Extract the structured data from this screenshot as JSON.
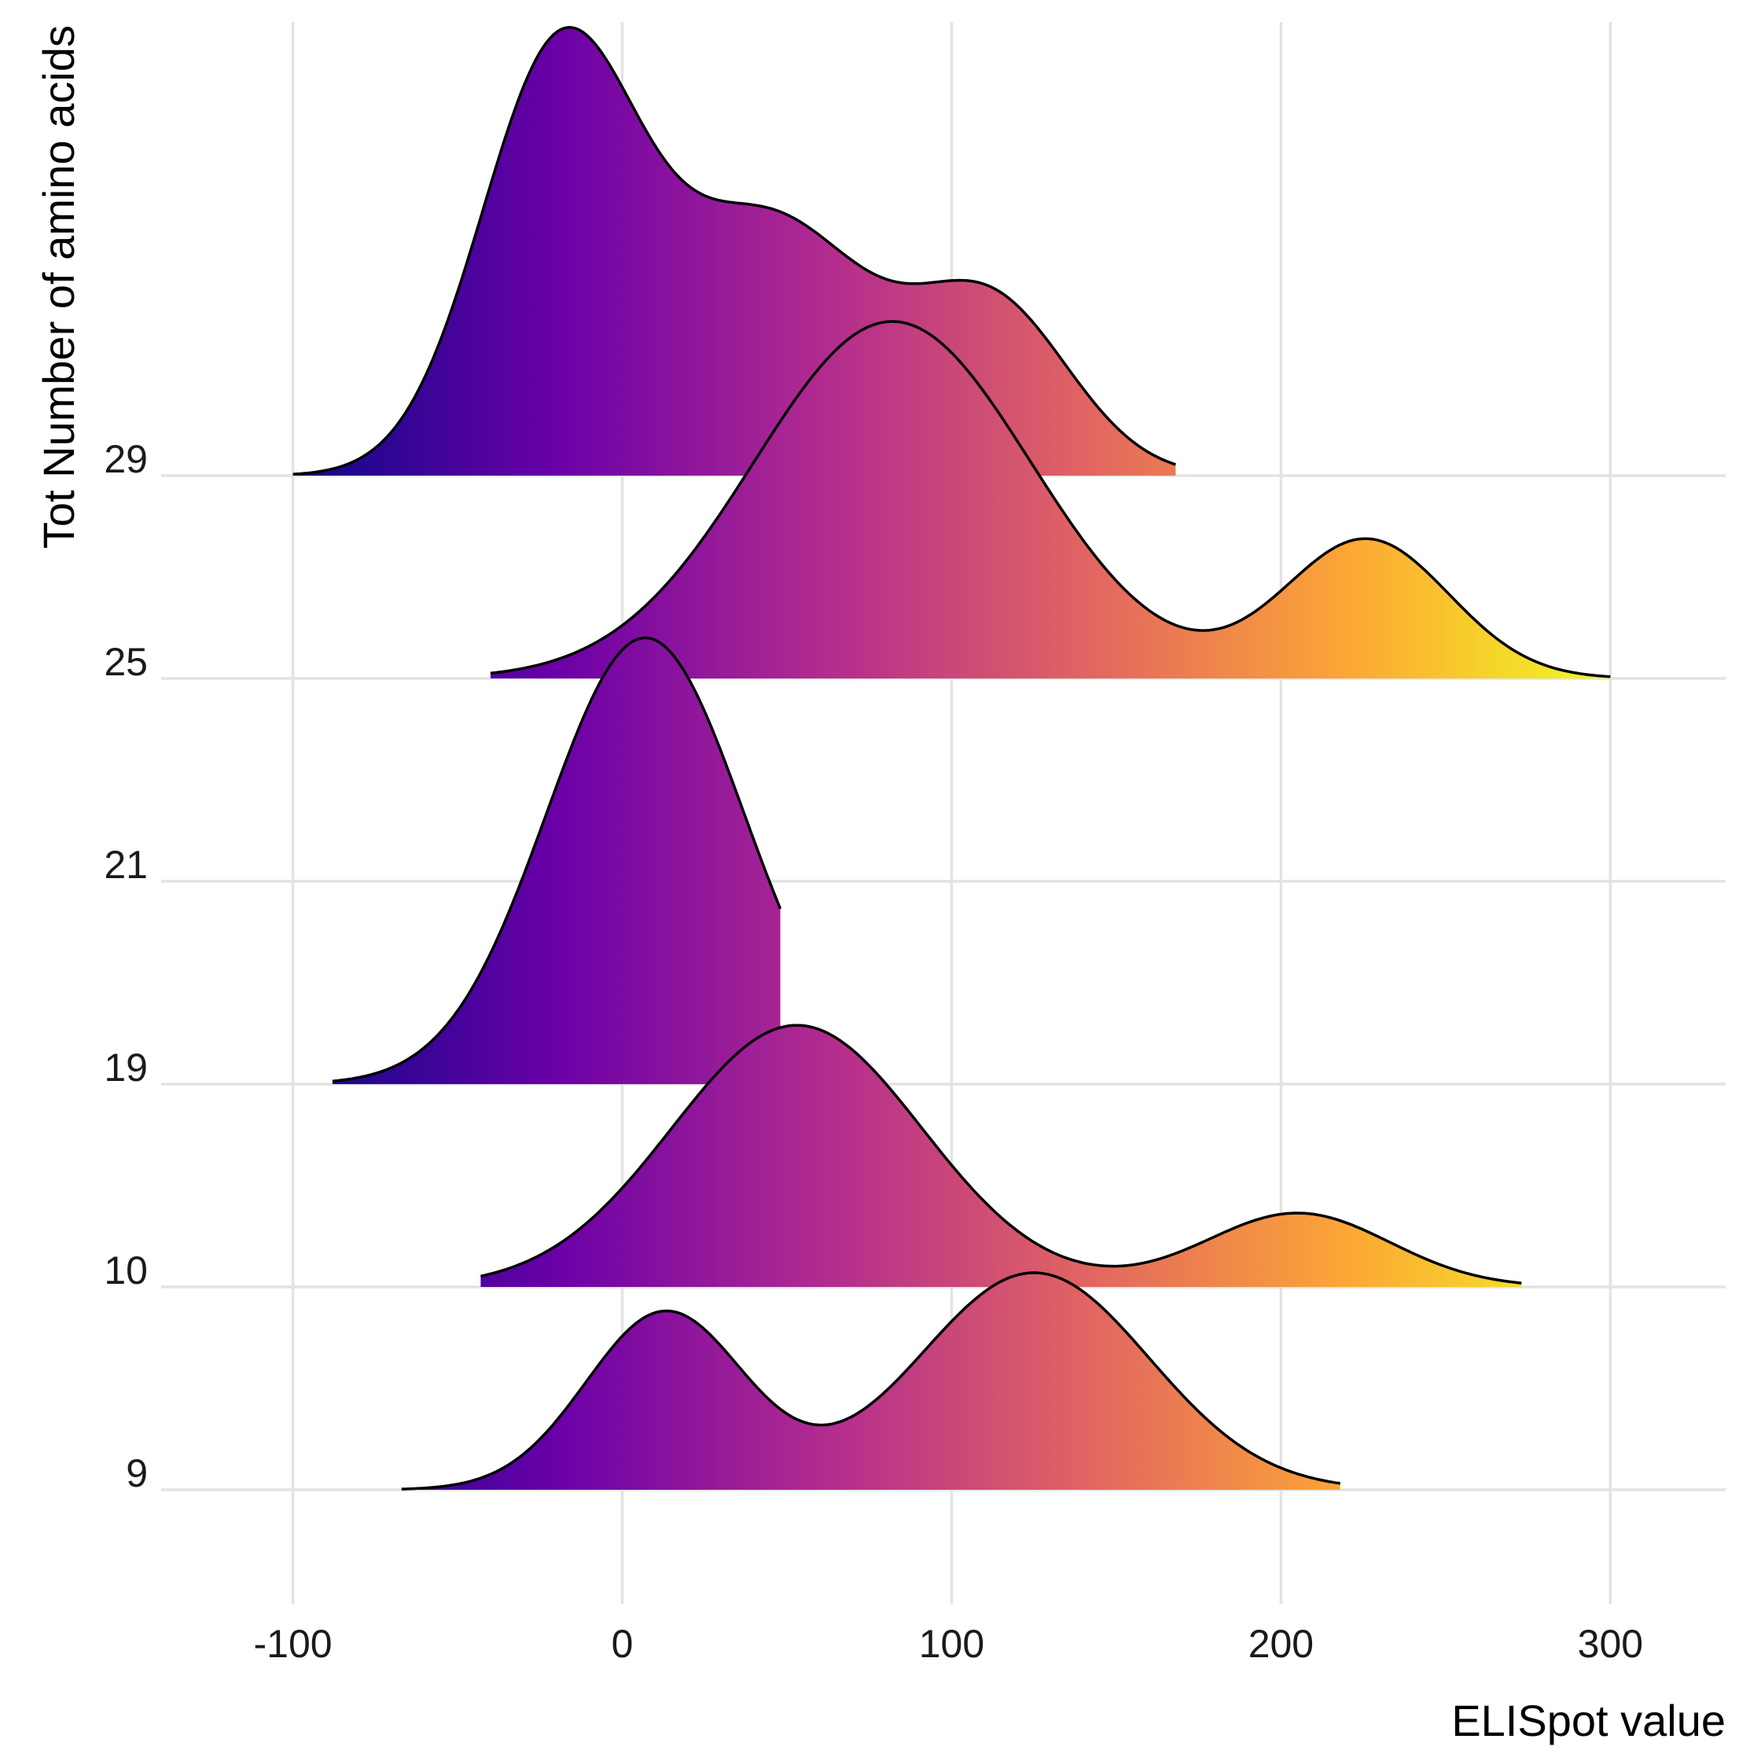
{
  "chart_data": {
    "type": "ridgeline",
    "xlabel": "ELISpot value",
    "ylabel": "Tot Number of amino acids",
    "xlim": [
      -140,
      335
    ],
    "x_ticks": [
      -100,
      0,
      100,
      200,
      300
    ],
    "x_tick_labels": [
      "-100",
      "0",
      "100",
      "200",
      "300"
    ],
    "categories": [
      "9",
      "10",
      "19",
      "21",
      "25",
      "29"
    ],
    "grid": "on",
    "legend": "none",
    "fill": "horizontal gradient by x value (plasma palette)",
    "palette": {
      "low_value": -100,
      "high_value": 300,
      "colors": [
        "#0d0887",
        "#6a00a8",
        "#b12a90",
        "#e16462",
        "#fca636",
        "#f0f921"
      ]
    },
    "series": [
      {
        "category": "9",
        "x_range": [
          -67,
          218
        ],
        "peaks": [
          {
            "x": 13,
            "sd": 24,
            "weight": 0.45
          },
          {
            "x": 125,
            "sd": 35,
            "weight": 0.55
          }
        ],
        "peak_height": 1.07
      },
      {
        "category": "10",
        "x_range": [
          -43,
          273
        ],
        "peaks": [
          {
            "x": 53,
            "sd": 38,
            "weight": 0.78
          },
          {
            "x": 205,
            "sd": 28,
            "weight": 0.22
          }
        ],
        "peak_height": 1.29
      },
      {
        "category": "19",
        "x_range": [
          -88,
          48
        ],
        "peaks": [
          {
            "x": 7,
            "sd": 30,
            "weight": 1.0
          }
        ],
        "peak_height": 2.2
      },
      {
        "category": "25",
        "x_range": [
          -40,
          300
        ],
        "peaks": [
          {
            "x": 82,
            "sd": 42,
            "weight": 0.72
          },
          {
            "x": 226,
            "sd": 25,
            "weight": 0.28
          }
        ],
        "peak_height": 1.76
      },
      {
        "category": "29",
        "x_range": [
          -100,
          168
        ],
        "peaks": [
          {
            "x": -19,
            "sd": 24,
            "weight": 0.5
          },
          {
            "x": 45,
            "sd": 30,
            "weight": 0.3
          },
          {
            "x": 112,
            "sd": 24,
            "weight": 0.2
          }
        ],
        "peak_height": 2.21
      }
    ]
  }
}
